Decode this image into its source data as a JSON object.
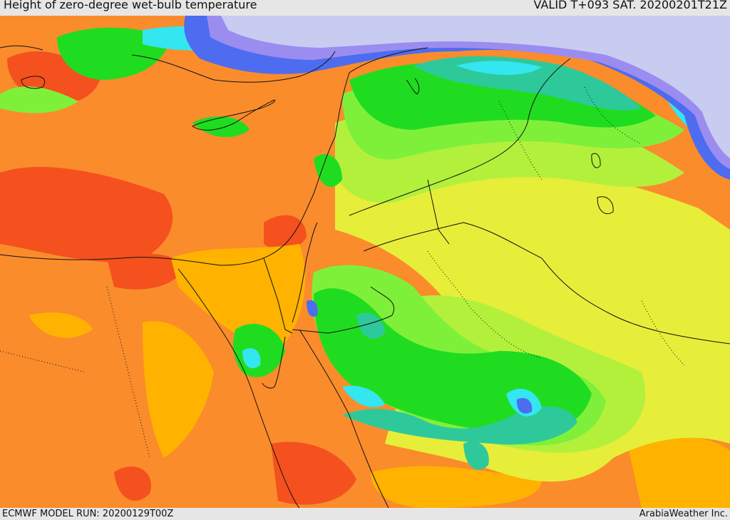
{
  "header": {
    "title": "Height of zero-degree wet-bulb temperature",
    "valid": "VALID T+093 SAT. 20200201T21Z"
  },
  "footer": {
    "model_run": "ECMWF MODEL RUN: 20200129T00Z",
    "credit": "ArabiaWeather Inc."
  },
  "map": {
    "palette": {
      "red": "#f4511e",
      "dark_orange": "#fa8c2c",
      "orange": "#ffb300",
      "yellow": "#e6ee3a",
      "yellow_green": "#b3f03c",
      "light_green": "#7ff03a",
      "green": "#20dc20",
      "teal": "#2ec99a",
      "cyan": "#33e6f0",
      "blue": "#4d6cf0",
      "violet": "#9b8cf0",
      "lavender": "#c8ccf0",
      "border": "#111111"
    }
  }
}
